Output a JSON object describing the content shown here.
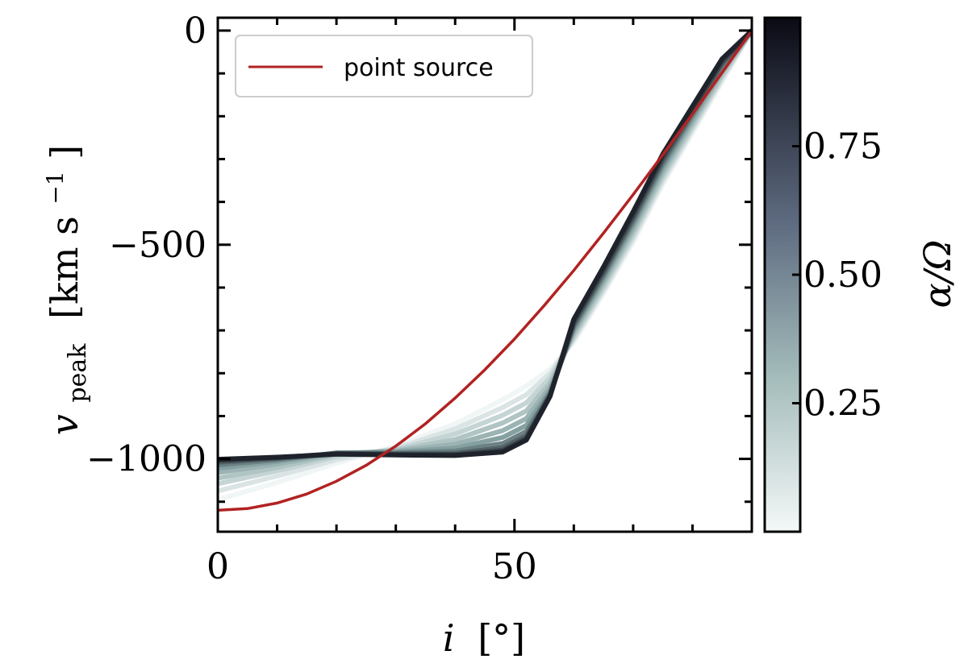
{
  "chart_data": {
    "type": "line",
    "x_label": {
      "main": "i",
      "unit": "[°]"
    },
    "y_label": {
      "main": "v",
      "sub": "peak",
      "unit_open": "[km s",
      "sup": "−1",
      "unit_close": "]"
    },
    "xlim": [
      0,
      90
    ],
    "ylim": [
      -1170,
      30
    ],
    "x_ticks": [
      0,
      50
    ],
    "x_tick_labels": [
      "0",
      "50"
    ],
    "x_minor_ticks": [
      10,
      20,
      30,
      40,
      60,
      70,
      80
    ],
    "y_ticks": [
      0,
      -500,
      -1000
    ],
    "y_tick_labels": [
      "0",
      "−500",
      "−1000"
    ],
    "y_minor_ticks": [
      -100,
      -200,
      -300,
      -400,
      -600,
      -700,
      -800,
      -900,
      -1100
    ],
    "reference_series": {
      "name": "point source",
      "color": "#b22222",
      "x": [
        0,
        5,
        10,
        15,
        20,
        25,
        30,
        35,
        40,
        45,
        50,
        55,
        60,
        65,
        70,
        75,
        80,
        85,
        90
      ],
      "y": [
        -1120,
        -1116,
        -1103,
        -1082,
        -1052,
        -1015,
        -970,
        -918,
        -858,
        -792,
        -720,
        -642,
        -560,
        -473,
        -383,
        -290,
        -195,
        -98,
        0
      ]
    },
    "alpha_family": {
      "x": [
        0,
        10,
        20,
        30,
        40,
        48,
        52,
        56,
        60,
        65,
        70,
        75,
        80,
        85,
        90
      ],
      "alpha": [
        0.02,
        0.12,
        0.22,
        0.32,
        0.42,
        0.52,
        0.62,
        0.72,
        0.82,
        0.92
      ],
      "y": [
        [
          -1095,
          -1055,
          -1010,
          -970,
          -918,
          -862,
          -830,
          -790,
          -728,
          -615,
          -495,
          -360,
          -240,
          -120,
          0
        ],
        [
          -1075,
          -1040,
          -1002,
          -975,
          -930,
          -880,
          -850,
          -800,
          -722,
          -608,
          -487,
          -352,
          -233,
          -114,
          0
        ],
        [
          -1058,
          -1028,
          -995,
          -978,
          -942,
          -898,
          -869,
          -811,
          -716,
          -601,
          -479,
          -344,
          -226,
          -108,
          0
        ],
        [
          -1045,
          -1020,
          -990,
          -980,
          -955,
          -916,
          -888,
          -822,
          -710,
          -594,
          -471,
          -336,
          -219,
          -102,
          0
        ],
        [
          -1032,
          -1012,
          -988,
          -982,
          -966,
          -934,
          -906,
          -832,
          -704,
          -587,
          -463,
          -328,
          -212,
          -96,
          0
        ],
        [
          -1022,
          -1006,
          -986,
          -984,
          -975,
          -950,
          -922,
          -840,
          -698,
          -580,
          -455,
          -320,
          -205,
          -90,
          0
        ],
        [
          -1014,
          -1002,
          -986,
          -986,
          -982,
          -964,
          -936,
          -846,
          -692,
          -573,
          -447,
          -312,
          -198,
          -84,
          0
        ],
        [
          -1008,
          -999,
          -987,
          -988,
          -987,
          -974,
          -946,
          -850,
          -686,
          -566,
          -439,
          -304,
          -191,
          -78,
          0
        ],
        [
          -1004,
          -997,
          -988,
          -990,
          -990,
          -980,
          -952,
          -852,
          -680,
          -559,
          -431,
          -296,
          -184,
          -72,
          0
        ],
        [
          -1001,
          -996,
          -989,
          -991,
          -992,
          -984,
          -956,
          -854,
          -674,
          -552,
          -423,
          -288,
          -177,
          -66,
          0
        ]
      ]
    },
    "colorbar": {
      "label": "α/Ω",
      "range": [
        0.0,
        1.0
      ],
      "ticks": [
        0.25,
        0.5,
        0.75
      ],
      "tick_labels": [
        "0.25",
        "0.50",
        "0.75"
      ],
      "color_low": "#f4f8f8",
      "color_mid": "#8aa6a6",
      "color_high": "#0a0a14"
    },
    "legend": {
      "position": "top-left",
      "entries": [
        "point source"
      ]
    }
  }
}
